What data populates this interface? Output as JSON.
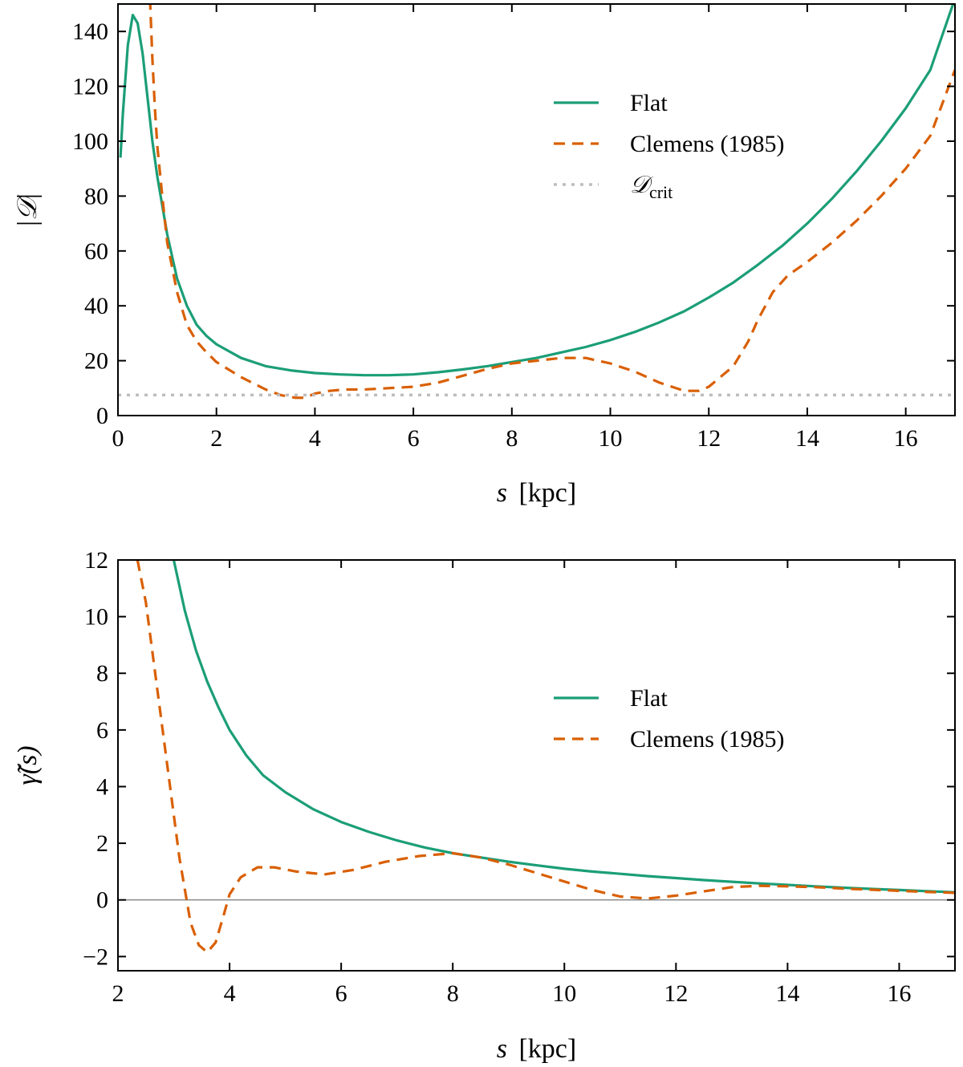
{
  "chart_data": [
    {
      "type": "line",
      "panel": "top",
      "title": "",
      "xlabel_var": "s",
      "xlabel_unit": "[kpc]",
      "ylabel_inner": "𝒟",
      "xlim": [
        0,
        17
      ],
      "ylim": [
        0,
        150
      ],
      "xticks": [
        0,
        2,
        4,
        6,
        8,
        10,
        12,
        14,
        16
      ],
      "yticks": [
        0,
        20,
        40,
        60,
        80,
        100,
        120,
        140
      ],
      "legend_position": "center-right",
      "series": [
        {
          "name": "Flat",
          "style": "solid",
          "color": "#1b9e77",
          "x": [
            0.05,
            0.1,
            0.2,
            0.3,
            0.4,
            0.5,
            0.6,
            0.7,
            0.8,
            1.0,
            1.2,
            1.4,
            1.6,
            1.8,
            2.0,
            2.5,
            3.0,
            3.5,
            4.0,
            4.5,
            5.0,
            5.5,
            6.0,
            6.5,
            7.0,
            7.5,
            8.0,
            8.5,
            9.0,
            9.5,
            10.0,
            10.5,
            11.0,
            11.5,
            12.0,
            12.5,
            13.0,
            13.5,
            14.0,
            14.5,
            15.0,
            15.5,
            16.0,
            16.5,
            17.0
          ],
          "y": [
            94,
            110,
            135,
            146,
            143,
            132,
            116,
            100,
            87,
            66,
            50,
            40,
            33,
            29,
            26,
            21,
            18,
            16.5,
            15.5,
            15,
            14.7,
            14.7,
            15,
            15.8,
            16.8,
            18,
            19.5,
            21,
            23,
            25,
            27.5,
            30.5,
            34,
            38,
            43,
            48.5,
            55,
            62,
            70,
            79,
            89,
            100,
            112,
            126,
            152
          ]
        },
        {
          "name": "Clemens (1985)",
          "style": "dashed",
          "color": "#d95f02",
          "x": [
            0.65,
            0.7,
            0.75,
            0.8,
            0.9,
            1.0,
            1.2,
            1.4,
            1.6,
            1.8,
            2.0,
            2.5,
            3.0,
            3.3,
            3.6,
            3.8,
            4.0,
            4.3,
            4.6,
            5.0,
            5.5,
            6.0,
            6.5,
            7.0,
            7.5,
            8.0,
            8.5,
            9.0,
            9.5,
            10.0,
            10.5,
            11.0,
            11.5,
            11.8,
            12.0,
            12.5,
            12.8,
            13.0,
            13.3,
            13.6,
            14.0,
            14.5,
            15.0,
            15.5,
            16.0,
            16.5,
            17.0
          ],
          "y": [
            152,
            130,
            112,
            98,
            80,
            63,
            45,
            33,
            27,
            23,
            19.5,
            14,
            9.5,
            7.5,
            6.5,
            6.5,
            8,
            9,
            9.5,
            9.5,
            10,
            10.5,
            12,
            14.5,
            17,
            19,
            20,
            21,
            21,
            19,
            16,
            12,
            9,
            9,
            10.5,
            18,
            27,
            35,
            45,
            51,
            56,
            63,
            71,
            80,
            90,
            102,
            126
          ]
        },
        {
          "name": "𝒟",
          "name_sub": "crit",
          "style": "dotted",
          "color": "#bdbdbd",
          "x": [
            0,
            17
          ],
          "y": [
            7.5,
            7.5
          ]
        }
      ]
    },
    {
      "type": "line",
      "panel": "bottom",
      "title": "",
      "xlabel_var": "s",
      "xlabel_unit": "[kpc]",
      "ylabel": "γ̃(s)",
      "xlim": [
        2,
        17
      ],
      "ylim": [
        -2.5,
        12
      ],
      "xticks": [
        2,
        4,
        6,
        8,
        10,
        12,
        14,
        16
      ],
      "yticks": [
        -2,
        0,
        2,
        4,
        6,
        8,
        10,
        12
      ],
      "tick_labels_y": [
        "−2",
        "0",
        "2",
        "4",
        "6",
        "8",
        "10",
        "12"
      ],
      "zero_line": true,
      "legend_position": "center-right",
      "series": [
        {
          "name": "Flat",
          "style": "solid",
          "color": "#1b9e77",
          "x": [
            3.0,
            3.2,
            3.4,
            3.6,
            3.8,
            4.0,
            4.3,
            4.6,
            5.0,
            5.5,
            6.0,
            6.5,
            7.0,
            7.5,
            8.0,
            8.5,
            9.0,
            9.5,
            10.0,
            10.5,
            11.0,
            11.5,
            12.0,
            12.5,
            13.0,
            13.5,
            14.0,
            14.5,
            15.0,
            15.5,
            16.0,
            16.5,
            17.0
          ],
          "y": [
            12,
            10.2,
            8.8,
            7.7,
            6.8,
            6.0,
            5.1,
            4.4,
            3.8,
            3.2,
            2.75,
            2.4,
            2.1,
            1.85,
            1.65,
            1.5,
            1.35,
            1.22,
            1.1,
            1.0,
            0.92,
            0.84,
            0.77,
            0.7,
            0.64,
            0.58,
            0.53,
            0.48,
            0.43,
            0.39,
            0.35,
            0.31,
            0.27
          ]
        },
        {
          "name": "Clemens (1985)",
          "style": "dashed",
          "color": "#d95f02",
          "x": [
            2.35,
            2.5,
            2.7,
            2.9,
            3.1,
            3.3,
            3.45,
            3.6,
            3.75,
            3.9,
            4.0,
            4.2,
            4.5,
            4.8,
            5.2,
            5.7,
            6.2,
            6.8,
            7.4,
            8.0,
            8.5,
            9.0,
            9.5,
            10.0,
            10.5,
            11.0,
            11.5,
            12.0,
            12.5,
            13.0,
            13.5,
            14.0,
            14.5,
            15.0,
            15.5,
            16.0,
            16.5,
            17.0
          ],
          "y": [
            12,
            10.5,
            7.5,
            4.5,
            1.5,
            -0.8,
            -1.6,
            -1.85,
            -1.5,
            -0.5,
            0.2,
            0.8,
            1.15,
            1.15,
            1.0,
            0.9,
            1.05,
            1.35,
            1.55,
            1.65,
            1.5,
            1.25,
            0.95,
            0.65,
            0.35,
            0.12,
            0.05,
            0.15,
            0.3,
            0.45,
            0.5,
            0.48,
            0.45,
            0.4,
            0.36,
            0.32,
            0.28,
            0.25
          ]
        }
      ]
    }
  ]
}
